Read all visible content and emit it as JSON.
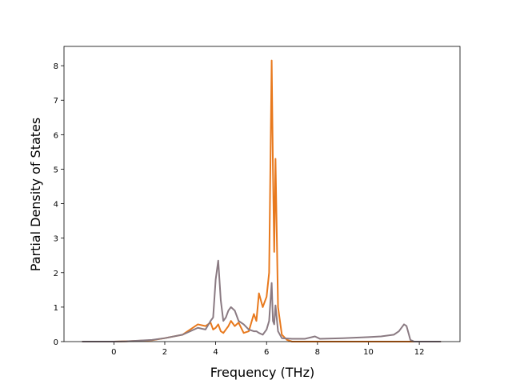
{
  "chart_data": {
    "type": "line",
    "xlabel": "Frequency (THz)",
    "ylabel": "Partial Density of States",
    "x": [
      -1.25,
      0,
      0.5,
      1.5,
      2,
      2.7,
      3.3,
      3.6,
      3.8,
      3.9,
      4.0,
      4.1,
      4.2,
      4.3,
      4.4,
      4.5,
      4.6,
      4.75,
      4.9,
      5.1,
      5.3,
      5.5,
      5.6,
      5.7,
      5.85,
      6.0,
      6.1,
      6.2,
      6.25,
      6.3,
      6.35,
      6.45,
      6.6,
      6.8,
      7.0,
      7.5,
      7.9,
      8.1,
      9,
      10,
      10.5,
      11,
      11.2,
      11.4,
      11.5,
      11.65,
      11.8,
      12.85
    ],
    "series": [
      {
        "color": "#e8791d",
        "values": [
          0,
          0,
          0.01,
          0.04,
          0.1,
          0.2,
          0.5,
          0.45,
          0.55,
          0.35,
          0.4,
          0.5,
          0.3,
          0.25,
          0.35,
          0.45,
          0.6,
          0.45,
          0.55,
          0.25,
          0.3,
          0.8,
          0.6,
          1.4,
          1.0,
          1.3,
          2.0,
          8.15,
          5.0,
          2.6,
          5.3,
          1.0,
          0.2,
          0.05,
          0,
          0,
          0,
          0,
          0,
          0,
          0,
          0,
          0,
          0,
          0,
          0,
          0,
          0
        ]
      },
      {
        "color": "#8a7a82",
        "values": [
          0,
          0,
          0.01,
          0.05,
          0.1,
          0.2,
          0.4,
          0.35,
          0.6,
          0.7,
          1.8,
          2.35,
          1.2,
          0.6,
          0.7,
          0.9,
          1.0,
          0.9,
          0.6,
          0.5,
          0.35,
          0.3,
          0.3,
          0.25,
          0.2,
          0.35,
          0.6,
          1.7,
          0.6,
          0.5,
          1.05,
          0.3,
          0.1,
          0.09,
          0.08,
          0.08,
          0.15,
          0.08,
          0.1,
          0.13,
          0.15,
          0.2,
          0.3,
          0.5,
          0.45,
          0.05,
          0,
          0
        ]
      }
    ],
    "xlim": [
      -1.96,
      13.6
    ],
    "ylim": [
      0,
      8.56
    ],
    "xticks": [
      0,
      2,
      4,
      6,
      8,
      10,
      12
    ],
    "yticks": [
      0,
      1,
      2,
      3,
      4,
      5,
      6,
      7,
      8
    ],
    "grid": false
  }
}
